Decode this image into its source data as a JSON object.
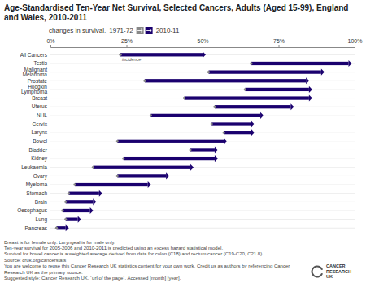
{
  "chart_data": {
    "type": "bar",
    "orientation": "horizontal",
    "title": "Age-Standardised Ten-Year Net Survival, Selected Cancers, Adults (Aged 15-99), England and Wales, 2010-2011",
    "subtitle": "changes in survival,",
    "categories": [
      "All Cancers",
      "Testis",
      "Malignant\nMelanoma",
      "Prostate",
      "Hodgkin\nLymphoma",
      "Breast",
      "Uterus",
      "NHL",
      "Cervix",
      "Larynx",
      "Bowel",
      "Bladder",
      "Kidney",
      "Leukaemia",
      "Ovary",
      "Myeloma",
      "Stomach",
      "Brain",
      "Oesophagus",
      "Lung",
      "Pancreas"
    ],
    "series": [
      {
        "name": "1971-72",
        "color": "#888888",
        "values": [
          23,
          66,
          52,
          31,
          64,
          44,
          54,
          33,
          53,
          57,
          22,
          46,
          24,
          14,
          22,
          8,
          6,
          5,
          4,
          5,
          2
        ]
      },
      {
        "name": "2010-11",
        "color": "#1a006e",
        "values": [
          50,
          98,
          89,
          84,
          85,
          85,
          79,
          69,
          66,
          66,
          57,
          54,
          54,
          46,
          38,
          32,
          16,
          14,
          13,
          9,
          5
        ]
      }
    ],
    "xlim": [
      0,
      100
    ],
    "xticks": [
      {
        "value": 0,
        "label": "0%"
      },
      {
        "value": 25,
        "label": "25%"
      },
      {
        "value": 50,
        "label": "50%"
      },
      {
        "value": 75,
        "label": "75%"
      },
      {
        "value": 100,
        "label": "100%"
      }
    ],
    "grid": true,
    "annotations": [
      "incidence"
    ],
    "footnotes": [
      "Breast is for female only. Laryngeal is for male only.",
      "Ten-year survival for 2005-2006 and 2010-2011 is predicted using an excess hazard statistical model.",
      "Survival for bowel cancer is a weighted average derived from data for colon (C18) and rectum cancer (C19-C20, C21.8).",
      "Source: cruk.org/cancerstats",
      "You are welcome to reuse this Cancer Research UK statistics content for your own work. Credit us as authors by referencing Cancer Research UK as the primary source.",
      "Suggested style: Cancer Research UK. ´url of the page´. Accessed [month] [year]."
    ],
    "logo": [
      "CANCER",
      "RESEARCH",
      "UK"
    ]
  }
}
